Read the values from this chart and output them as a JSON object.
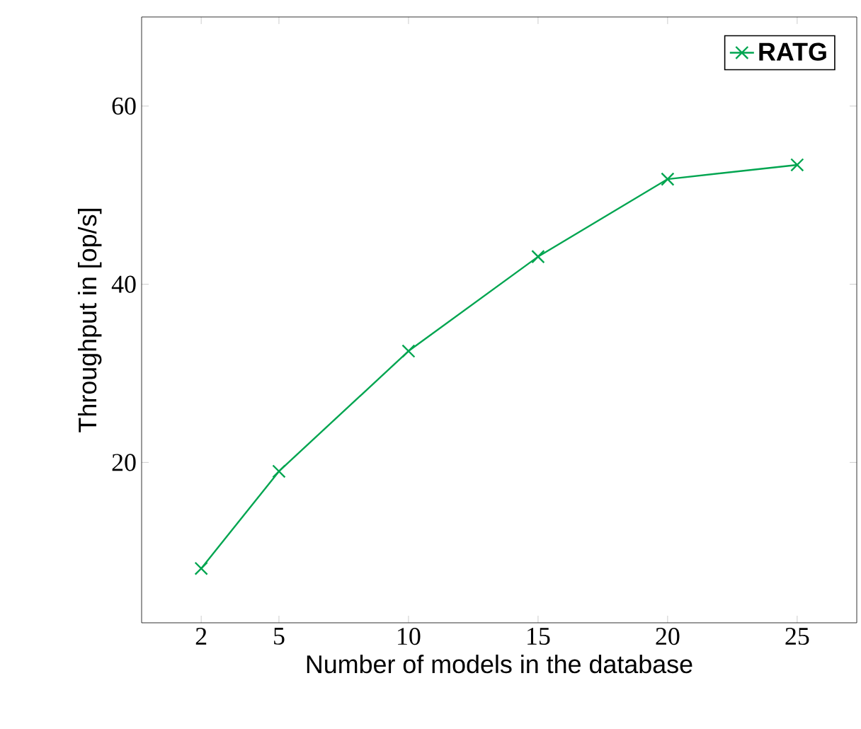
{
  "chart_data": {
    "type": "line",
    "xlabel": "Number of models in the database",
    "ylabel": "Throughput in [op/s]",
    "x": [
      2,
      5,
      10,
      15,
      20,
      25
    ],
    "series": [
      {
        "name": "RATG",
        "color": "#00a550",
        "values": [
          8.1,
          19.0,
          32.5,
          43.1,
          51.8,
          53.4
        ]
      }
    ],
    "xlim": [
      -0.3,
      27.3
    ],
    "ylim": [
      2,
      70
    ],
    "xticks": [
      2,
      5,
      10,
      15,
      20,
      25
    ],
    "yticks": [
      20,
      40,
      60
    ],
    "legend": "top right",
    "marker": "cross",
    "line_style": "solid",
    "grid": false
  }
}
